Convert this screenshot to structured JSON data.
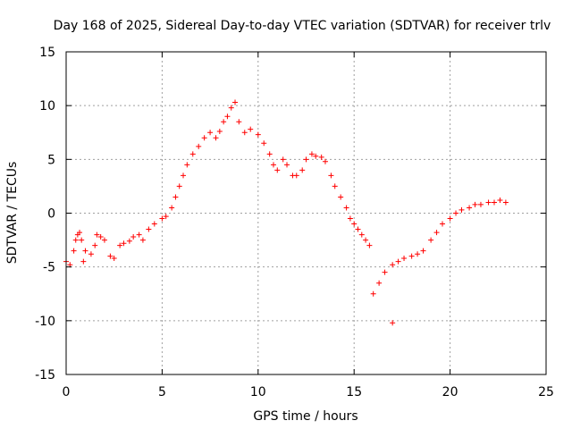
{
  "chart_data": {
    "type": "scatter",
    "title": "Day 168 of 2025, Sidereal Day-to-day VTEC variation (SDTVAR) for receiver trlv",
    "xlabel": "GPS time / hours",
    "ylabel": "SDTVAR / TECUs",
    "xlim": [
      0,
      25
    ],
    "ylim": [
      -15,
      15
    ],
    "xticks": [
      0,
      5,
      10,
      15,
      20,
      25
    ],
    "yticks": [
      -15,
      -10,
      -5,
      0,
      5,
      10,
      15
    ],
    "xtick_labels": [
      "0",
      "5",
      "10",
      "15",
      "20",
      "25"
    ],
    "ytick_labels": [
      "-15",
      "-10",
      "-5",
      "0",
      "5",
      "10",
      "15"
    ],
    "grid": true,
    "marker": "+",
    "series": [
      {
        "color": "#ff0000",
        "points": [
          [
            0.0,
            -4.5
          ],
          [
            0.2,
            -4.8
          ],
          [
            0.4,
            -3.5
          ],
          [
            0.5,
            -2.5
          ],
          [
            0.6,
            -2.0
          ],
          [
            0.7,
            -1.8
          ],
          [
            0.8,
            -2.5
          ],
          [
            0.9,
            -4.5
          ],
          [
            1.0,
            -3.5
          ],
          [
            1.3,
            -3.8
          ],
          [
            1.5,
            -3.0
          ],
          [
            1.6,
            -2.0
          ],
          [
            1.8,
            -2.2
          ],
          [
            2.0,
            -2.5
          ],
          [
            2.3,
            -4.0
          ],
          [
            2.5,
            -4.2
          ],
          [
            2.8,
            -3.0
          ],
          [
            3.0,
            -2.8
          ],
          [
            3.3,
            -2.6
          ],
          [
            3.5,
            -2.2
          ],
          [
            3.8,
            -2.0
          ],
          [
            4.0,
            -2.5
          ],
          [
            4.3,
            -1.5
          ],
          [
            4.6,
            -1.0
          ],
          [
            5.0,
            -0.5
          ],
          [
            5.2,
            -0.3
          ],
          [
            5.5,
            0.5
          ],
          [
            5.7,
            1.5
          ],
          [
            5.9,
            2.5
          ],
          [
            6.1,
            3.5
          ],
          [
            6.3,
            4.5
          ],
          [
            6.6,
            5.5
          ],
          [
            6.9,
            6.2
          ],
          [
            7.2,
            7.0
          ],
          [
            7.5,
            7.5
          ],
          [
            7.8,
            7.0
          ],
          [
            8.0,
            7.6
          ],
          [
            8.2,
            8.5
          ],
          [
            8.4,
            9.0
          ],
          [
            8.6,
            9.8
          ],
          [
            8.8,
            10.3
          ],
          [
            9.0,
            8.5
          ],
          [
            9.3,
            7.5
          ],
          [
            9.6,
            7.8
          ],
          [
            10.0,
            7.3
          ],
          [
            10.3,
            6.5
          ],
          [
            10.6,
            5.5
          ],
          [
            10.8,
            4.5
          ],
          [
            11.0,
            4.0
          ],
          [
            11.3,
            5.0
          ],
          [
            11.5,
            4.5
          ],
          [
            11.8,
            3.5
          ],
          [
            12.0,
            3.5
          ],
          [
            12.3,
            4.0
          ],
          [
            12.5,
            5.0
          ],
          [
            12.8,
            5.5
          ],
          [
            13.0,
            5.3
          ],
          [
            13.3,
            5.2
          ],
          [
            13.5,
            4.8
          ],
          [
            13.8,
            3.5
          ],
          [
            14.0,
            2.5
          ],
          [
            14.3,
            1.5
          ],
          [
            14.6,
            0.5
          ],
          [
            14.8,
            -0.5
          ],
          [
            15.0,
            -1.0
          ],
          [
            15.2,
            -1.5
          ],
          [
            15.4,
            -2.0
          ],
          [
            15.6,
            -2.5
          ],
          [
            15.8,
            -3.0
          ],
          [
            16.0,
            -7.5
          ],
          [
            16.3,
            -6.5
          ],
          [
            16.6,
            -5.5
          ],
          [
            17.0,
            -4.8
          ],
          [
            17.3,
            -4.5
          ],
          [
            17.6,
            -4.2
          ],
          [
            18.0,
            -4.0
          ],
          [
            18.3,
            -3.8
          ],
          [
            18.6,
            -3.5
          ],
          [
            19.0,
            -2.5
          ],
          [
            19.3,
            -1.8
          ],
          [
            19.6,
            -1.0
          ],
          [
            20.0,
            -0.5
          ],
          [
            20.3,
            0.0
          ],
          [
            20.6,
            0.3
          ],
          [
            21.0,
            0.5
          ],
          [
            21.3,
            0.8
          ],
          [
            21.6,
            0.8
          ],
          [
            22.0,
            1.0
          ],
          [
            22.3,
            1.0
          ],
          [
            22.6,
            1.2
          ],
          [
            22.9,
            1.0
          ],
          [
            17.0,
            -10.2
          ]
        ]
      }
    ]
  }
}
